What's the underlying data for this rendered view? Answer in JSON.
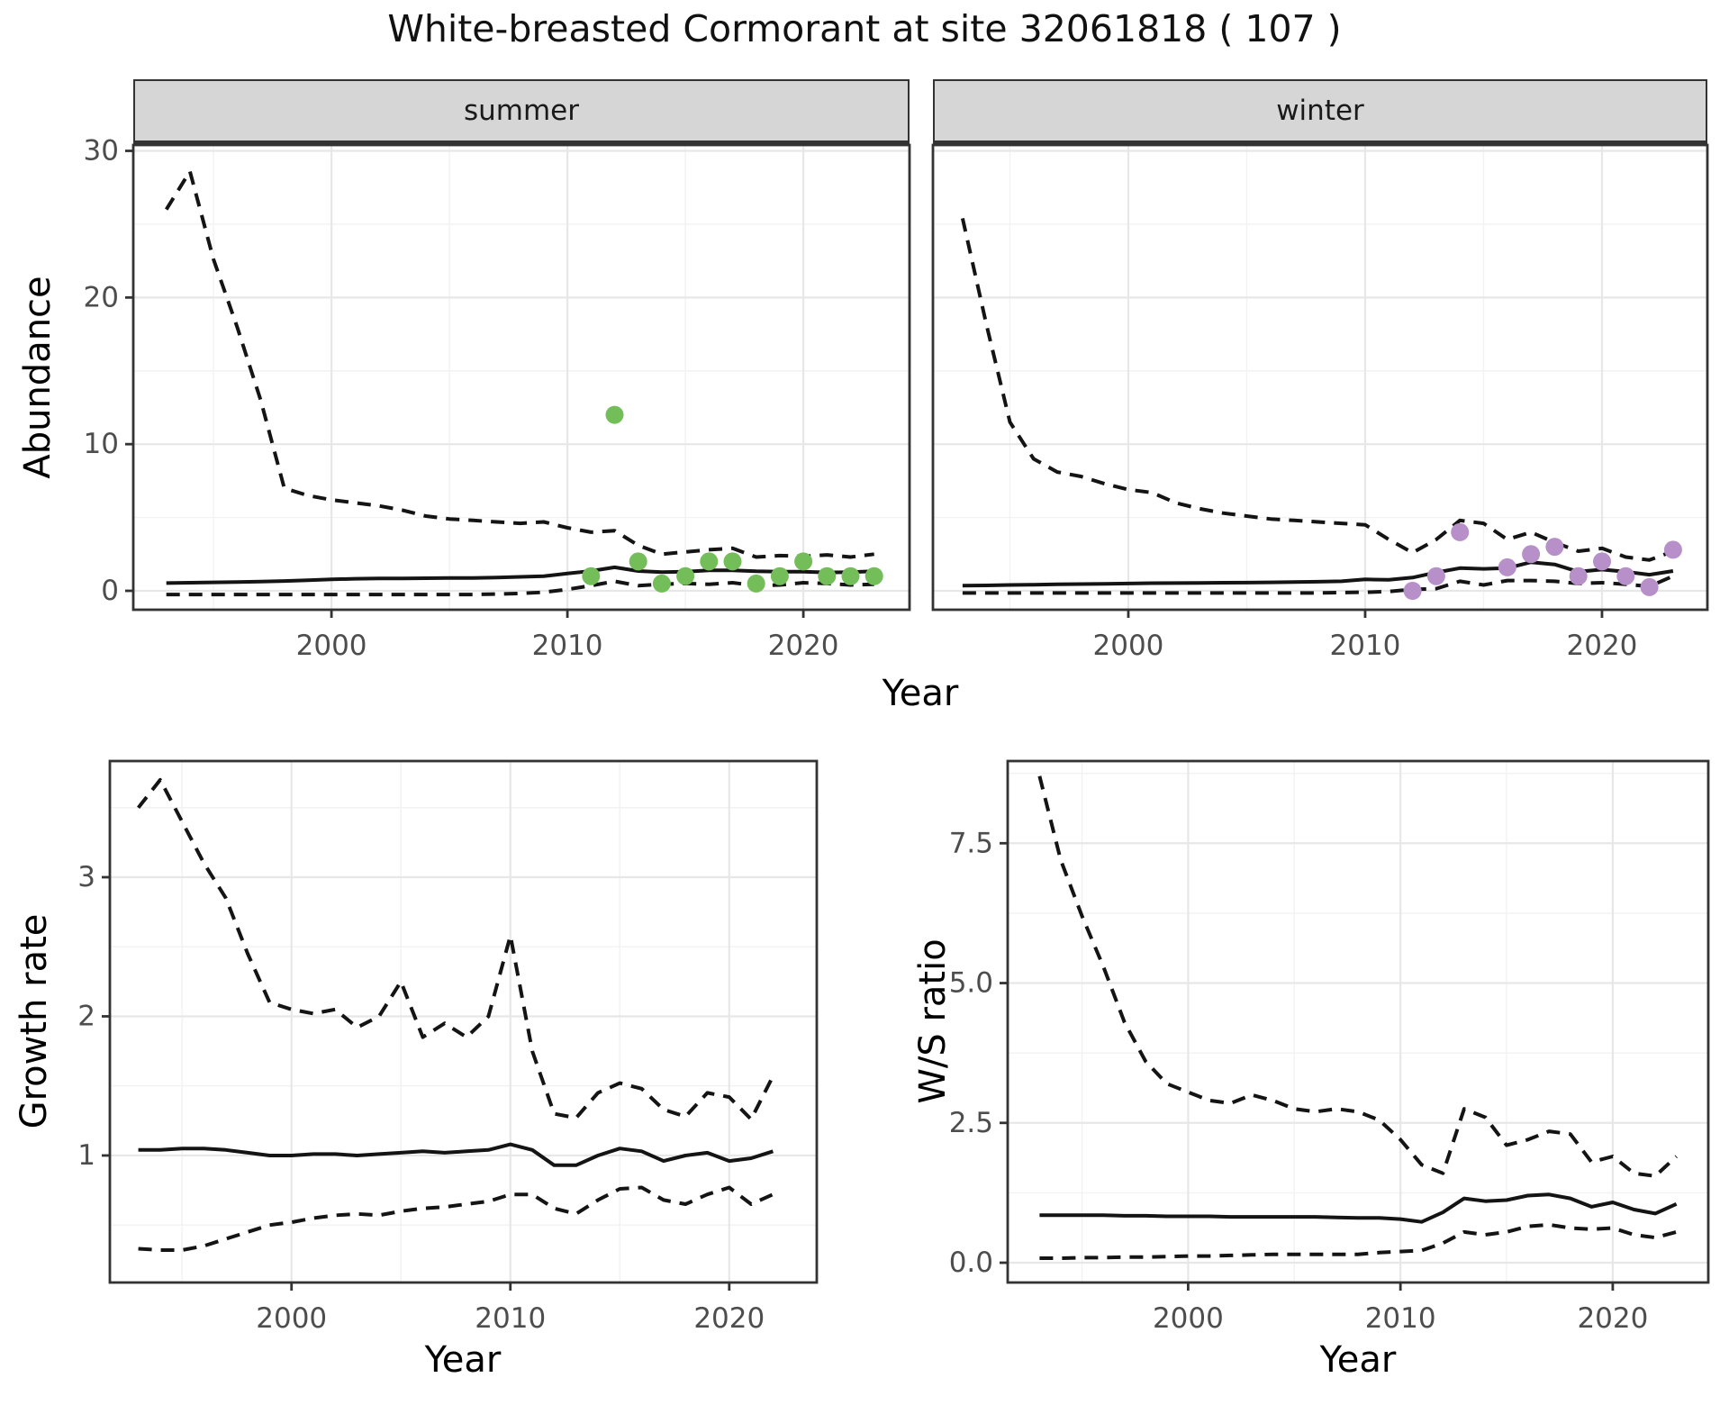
{
  "title": "White-breasted Cormorant at site 32061818 ( 107 )",
  "facets": {
    "summer": "summer",
    "winter": "winter"
  },
  "axes": {
    "abundance": "Abundance",
    "growth": "Growth rate",
    "ws": "W/S ratio",
    "year_top": "Year",
    "year_growth": "Year",
    "year_ws": "Year"
  },
  "colors": {
    "summer_point": "#74BE59",
    "winter_point": "#B78FC9",
    "line": "#141414",
    "tick_text": "#4D4D4D",
    "axis_border": "#333333",
    "grid_major": "#E7E7E7",
    "grid_minor": "#F2F2F2",
    "strip_bg": "#D6D6D6",
    "panel_bg": "#FFFFFF"
  },
  "chart_data": [
    {
      "id": "abundance-summer",
      "type": "line",
      "facet": "summer",
      "title": "White-breasted Cormorant at site 32061818 ( 107 )",
      "xlabel": "Year",
      "ylabel": "Abundance",
      "xlim": [
        1991.6,
        2024.5
      ],
      "ylim": [
        -1.29,
        30.4
      ],
      "xticks": [
        2000,
        2010,
        2020
      ],
      "xtick_labels": [
        "2000",
        "2010",
        "2020"
      ],
      "xticks_minor": [
        1995,
        2005,
        2015
      ],
      "yticks": [
        0,
        10,
        20,
        30
      ],
      "ytick_labels": [
        "0",
        "10",
        "20",
        "30"
      ],
      "yticks_minor": [
        5,
        15,
        25
      ],
      "grid": true,
      "legend": "none",
      "years": [
        1993,
        1994,
        1995,
        1996,
        1997,
        1998,
        1999,
        2000,
        2001,
        2002,
        2003,
        2004,
        2005,
        2006,
        2007,
        2008,
        2009,
        2010,
        2011,
        2012,
        2013,
        2014,
        2015,
        2016,
        2017,
        2018,
        2019,
        2020,
        2021,
        2022,
        2023
      ],
      "series": [
        {
          "name": "upper-95ci",
          "style": "dashed",
          "values": [
            26.0,
            28.6,
            22.6,
            18.0,
            13.0,
            7.0,
            6.5,
            6.2,
            6.0,
            5.8,
            5.5,
            5.1,
            4.9,
            4.8,
            4.7,
            4.6,
            4.7,
            4.3,
            4.0,
            4.1,
            3.1,
            2.5,
            2.65,
            2.8,
            2.9,
            2.3,
            2.4,
            2.35,
            2.45,
            2.3,
            2.5
          ]
        },
        {
          "name": "fitted",
          "style": "solid",
          "values": [
            0.53,
            0.55,
            0.58,
            0.6,
            0.63,
            0.67,
            0.72,
            0.78,
            0.82,
            0.85,
            0.85,
            0.86,
            0.87,
            0.88,
            0.9,
            0.95,
            1.0,
            1.18,
            1.35,
            1.6,
            1.35,
            1.28,
            1.3,
            1.4,
            1.4,
            1.33,
            1.3,
            1.3,
            1.25,
            1.28,
            1.33
          ]
        },
        {
          "name": "lower-95ci",
          "style": "dashed",
          "values": [
            -0.25,
            -0.25,
            -0.25,
            -0.25,
            -0.25,
            -0.25,
            -0.25,
            -0.25,
            -0.25,
            -0.25,
            -0.25,
            -0.25,
            -0.25,
            -0.25,
            -0.22,
            -0.18,
            -0.1,
            0.1,
            0.35,
            0.65,
            0.35,
            0.45,
            0.5,
            0.45,
            0.55,
            0.35,
            0.4,
            0.55,
            0.5,
            0.4,
            0.45
          ]
        }
      ],
      "points": {
        "name": "observed-summer",
        "color_key": "summer_point",
        "data": [
          [
            2011,
            1
          ],
          [
            2012,
            12
          ],
          [
            2013,
            2
          ],
          [
            2014,
            0.5
          ],
          [
            2015,
            1
          ],
          [
            2016,
            2
          ],
          [
            2017,
            2
          ],
          [
            2018,
            0.5
          ],
          [
            2019,
            1
          ],
          [
            2020,
            2
          ],
          [
            2021,
            1
          ],
          [
            2022,
            1
          ],
          [
            2023,
            1
          ]
        ]
      }
    },
    {
      "id": "abundance-winter",
      "type": "line",
      "facet": "winter",
      "xlabel": "Year",
      "ylabel": "Abundance",
      "xlim": [
        1991.75,
        2024.45
      ],
      "ylim": [
        -1.29,
        30.4
      ],
      "xticks": [
        2000,
        2010,
        2020
      ],
      "xtick_labels": [
        "2000",
        "2010",
        "2020"
      ],
      "xticks_minor": [
        1995,
        2005,
        2015
      ],
      "yticks": [
        0,
        10,
        20,
        30
      ],
      "ytick_labels": [
        "0",
        "10",
        "20",
        "30"
      ],
      "yticks_minor": [
        5,
        15,
        25
      ],
      "grid": true,
      "legend": "none",
      "years": [
        1993,
        1994,
        1995,
        1996,
        1997,
        1998,
        1999,
        2000,
        2001,
        2002,
        2003,
        2004,
        2005,
        2006,
        2007,
        2008,
        2009,
        2010,
        2011,
        2012,
        2013,
        2014,
        2015,
        2016,
        2017,
        2018,
        2019,
        2020,
        2021,
        2022,
        2023
      ],
      "series": [
        {
          "name": "upper-95ci",
          "style": "dashed",
          "values": [
            25.4,
            18.2,
            11.5,
            9.0,
            8.1,
            7.8,
            7.3,
            6.9,
            6.7,
            6.0,
            5.6,
            5.3,
            5.1,
            4.9,
            4.8,
            4.7,
            4.6,
            4.5,
            3.5,
            2.6,
            3.5,
            4.8,
            4.6,
            3.5,
            4.0,
            3.3,
            2.7,
            2.9,
            2.3,
            2.1,
            2.7
          ]
        },
        {
          "name": "fitted",
          "style": "solid",
          "values": [
            0.35,
            0.37,
            0.4,
            0.42,
            0.44,
            0.46,
            0.48,
            0.5,
            0.52,
            0.53,
            0.54,
            0.55,
            0.56,
            0.58,
            0.6,
            0.62,
            0.65,
            0.78,
            0.75,
            0.9,
            1.25,
            1.55,
            1.5,
            1.55,
            1.95,
            1.8,
            1.3,
            1.45,
            1.3,
            1.1,
            1.35
          ]
        },
        {
          "name": "lower-95ci",
          "style": "dashed",
          "values": [
            -0.15,
            -0.15,
            -0.15,
            -0.15,
            -0.15,
            -0.15,
            -0.15,
            -0.15,
            -0.15,
            -0.15,
            -0.15,
            -0.15,
            -0.15,
            -0.15,
            -0.15,
            -0.15,
            -0.12,
            -0.1,
            -0.05,
            0.1,
            0.15,
            0.65,
            0.4,
            0.7,
            0.7,
            0.65,
            0.5,
            0.55,
            0.45,
            0.3,
            1.0
          ]
        }
      ],
      "points": {
        "name": "observed-winter",
        "color_key": "winter_point",
        "data": [
          [
            2012,
            0
          ],
          [
            2013,
            1
          ],
          [
            2014,
            4
          ],
          [
            2016,
            1.6
          ],
          [
            2017,
            2.5
          ],
          [
            2018,
            3
          ],
          [
            2019,
            1
          ],
          [
            2020,
            2
          ],
          [
            2021,
            1
          ],
          [
            2022,
            0.25
          ],
          [
            2023,
            2.8
          ]
        ]
      }
    },
    {
      "id": "growth-rate",
      "type": "line",
      "facet": null,
      "xlabel": "Year",
      "ylabel": "Growth rate",
      "xlim": [
        1991.7,
        2024.0
      ],
      "ylim": [
        0.087,
        3.835
      ],
      "xticks": [
        2000,
        2010,
        2020
      ],
      "xtick_labels": [
        "2000",
        "2010",
        "2020"
      ],
      "xticks_minor": [
        1995,
        2005,
        2015
      ],
      "yticks": [
        1,
        2,
        3
      ],
      "ytick_labels": [
        "1",
        "2",
        "3"
      ],
      "yticks_minor": [
        0.5,
        1.5,
        2.5,
        3.5
      ],
      "grid": true,
      "legend": "none",
      "years": [
        1993,
        1994,
        1995,
        1996,
        1997,
        1998,
        1999,
        2000,
        2001,
        2002,
        2003,
        2004,
        2005,
        2006,
        2007,
        2008,
        2009,
        2010,
        2011,
        2012,
        2013,
        2014,
        2015,
        2016,
        2017,
        2018,
        2019,
        2020,
        2021,
        2022
      ],
      "series": [
        {
          "name": "upper-95ci",
          "style": "dashed",
          "values": [
            3.5,
            3.7,
            3.4,
            3.1,
            2.85,
            2.45,
            2.1,
            2.05,
            2.02,
            2.05,
            1.92,
            2.0,
            2.25,
            1.85,
            1.95,
            1.85,
            2.0,
            2.58,
            1.75,
            1.3,
            1.27,
            1.45,
            1.52,
            1.48,
            1.33,
            1.28,
            1.45,
            1.42,
            1.26,
            1.57
          ]
        },
        {
          "name": "fitted",
          "style": "solid",
          "values": [
            1.04,
            1.04,
            1.05,
            1.05,
            1.04,
            1.02,
            1.0,
            1.0,
            1.01,
            1.01,
            1.0,
            1.01,
            1.02,
            1.03,
            1.02,
            1.03,
            1.04,
            1.08,
            1.04,
            0.93,
            0.93,
            1.0,
            1.05,
            1.03,
            0.96,
            1.0,
            1.02,
            0.96,
            0.98,
            1.03
          ]
        },
        {
          "name": "lower-95ci",
          "style": "dashed",
          "values": [
            0.33,
            0.32,
            0.32,
            0.35,
            0.4,
            0.45,
            0.5,
            0.52,
            0.55,
            0.57,
            0.58,
            0.57,
            0.6,
            0.62,
            0.63,
            0.65,
            0.67,
            0.72,
            0.72,
            0.62,
            0.58,
            0.68,
            0.76,
            0.77,
            0.68,
            0.65,
            0.72,
            0.77,
            0.65,
            0.72
          ]
        }
      ],
      "points": null
    },
    {
      "id": "ws-ratio",
      "type": "line",
      "facet": null,
      "xlabel": "Year",
      "ylabel": "W/S ratio",
      "xlim": [
        1991.5,
        2024.5
      ],
      "ylim": [
        -0.354,
        8.97
      ],
      "xticks": [
        2000,
        2010,
        2020
      ],
      "xtick_labels": [
        "2000",
        "2010",
        "2020"
      ],
      "xticks_minor": [
        1995,
        2005,
        2015
      ],
      "yticks": [
        0,
        2.5,
        5,
        7.5
      ],
      "ytick_labels": [
        "0.0",
        "2.5",
        "5.0",
        "7.5"
      ],
      "yticks_minor": [
        1.25,
        3.75,
        6.25,
        8.75
      ],
      "grid": true,
      "legend": "none",
      "years": [
        1993,
        1994,
        1995,
        1996,
        1997,
        1998,
        1999,
        2000,
        2001,
        2002,
        2003,
        2004,
        2005,
        2006,
        2007,
        2008,
        2009,
        2010,
        2011,
        2012,
        2013,
        2014,
        2015,
        2016,
        2017,
        2018,
        2019,
        2020,
        2021,
        2022,
        2023
      ],
      "series": [
        {
          "name": "upper-95ci",
          "style": "dashed",
          "values": [
            8.7,
            7.2,
            6.2,
            5.3,
            4.3,
            3.6,
            3.2,
            3.05,
            2.9,
            2.85,
            3.0,
            2.9,
            2.75,
            2.7,
            2.75,
            2.7,
            2.55,
            2.2,
            1.75,
            1.6,
            2.75,
            2.6,
            2.1,
            2.2,
            2.35,
            2.3,
            1.8,
            1.9,
            1.6,
            1.55,
            1.9
          ]
        },
        {
          "name": "fitted",
          "style": "solid",
          "values": [
            0.85,
            0.85,
            0.85,
            0.85,
            0.84,
            0.84,
            0.83,
            0.83,
            0.83,
            0.82,
            0.82,
            0.82,
            0.82,
            0.82,
            0.81,
            0.8,
            0.8,
            0.78,
            0.73,
            0.9,
            1.15,
            1.1,
            1.12,
            1.2,
            1.22,
            1.15,
            1.0,
            1.08,
            0.95,
            0.88,
            1.05
          ]
        },
        {
          "name": "lower-95ci",
          "style": "dashed",
          "values": [
            0.08,
            0.08,
            0.09,
            0.09,
            0.1,
            0.1,
            0.11,
            0.12,
            0.12,
            0.13,
            0.14,
            0.15,
            0.15,
            0.15,
            0.15,
            0.15,
            0.18,
            0.2,
            0.22,
            0.35,
            0.55,
            0.5,
            0.55,
            0.65,
            0.68,
            0.62,
            0.6,
            0.62,
            0.5,
            0.45,
            0.55
          ]
        }
      ],
      "points": null
    }
  ]
}
